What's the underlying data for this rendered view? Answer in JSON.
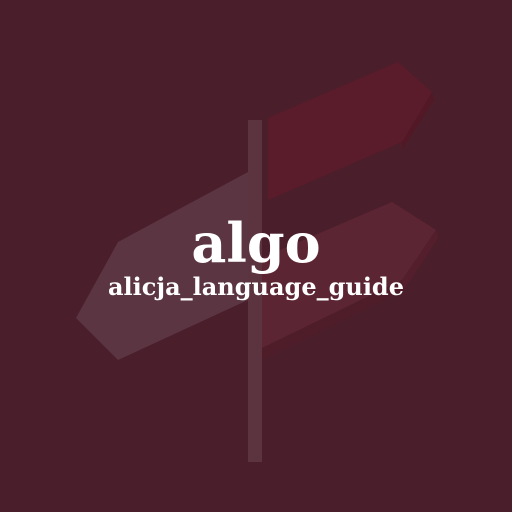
{
  "background_color": "#4a1e2b",
  "illustration": {
    "icon": "signpost-icon",
    "colors": {
      "pole": "#5c3440",
      "top_sign": "#5a1c2a",
      "left_sign": "#5b3542",
      "right_sign": "#5c2533"
    }
  },
  "title": "algo",
  "subtitle": "alicja_language_guide"
}
